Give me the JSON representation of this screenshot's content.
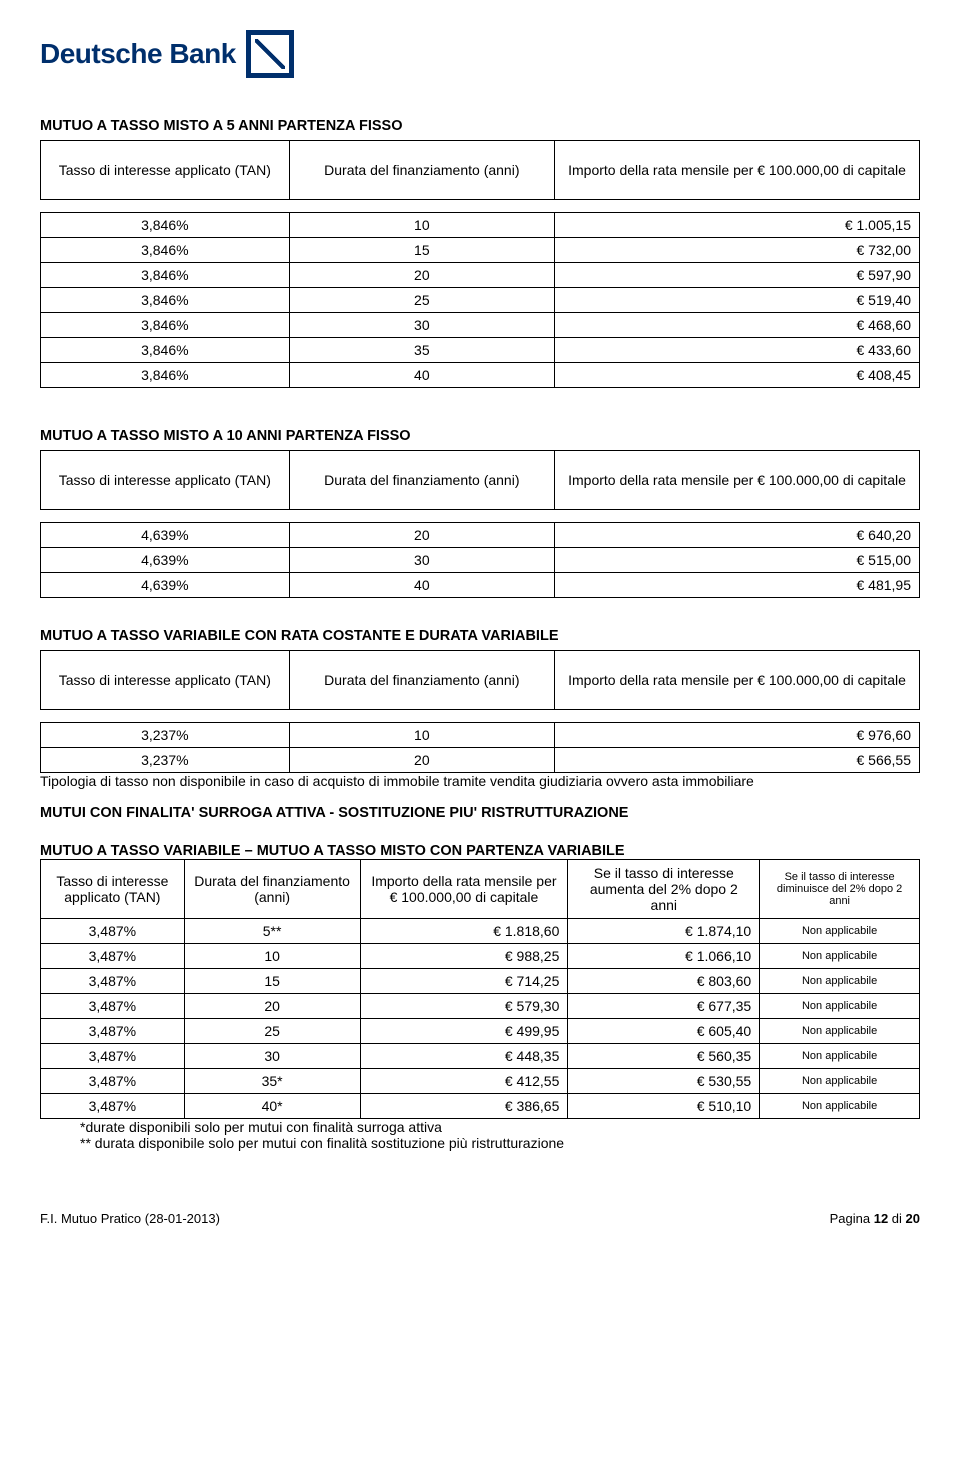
{
  "logo_text": "Deutsche Bank",
  "section1": {
    "title": "MUTUO A TASSO MISTO A 5 ANNI PARTENZA FISSO",
    "h1": "Tasso di interesse applicato (TAN)",
    "h2": "Durata del finanziamento (anni)",
    "h3": "Importo della rata mensile per € 100.000,00 di capitale",
    "rows": [
      {
        "a": "3,846%",
        "b": "10",
        "c": "€ 1.005,15"
      },
      {
        "a": "3,846%",
        "b": "15",
        "c": "€ 732,00"
      },
      {
        "a": "3,846%",
        "b": "20",
        "c": "€ 597,90"
      },
      {
        "a": "3,846%",
        "b": "25",
        "c": "€ 519,40"
      },
      {
        "a": "3,846%",
        "b": "30",
        "c": "€ 468,60"
      },
      {
        "a": "3,846%",
        "b": "35",
        "c": "€ 433,60"
      },
      {
        "a": "3,846%",
        "b": "40",
        "c": "€ 408,45"
      }
    ]
  },
  "section2": {
    "title": "MUTUO A TASSO MISTO A 10 ANNI PARTENZA FISSO",
    "h1": "Tasso di interesse applicato (TAN)",
    "h2": "Durata del finanziamento (anni)",
    "h3": "Importo della rata mensile per € 100.000,00 di capitale",
    "rows": [
      {
        "a": "4,639%",
        "b": "20",
        "c": "€ 640,20"
      },
      {
        "a": "4,639%",
        "b": "30",
        "c": "€ 515,00"
      },
      {
        "a": "4,639%",
        "b": "40",
        "c": "€ 481,95"
      }
    ]
  },
  "section3": {
    "title": "MUTUO A TASSO VARIABILE CON RATA COSTANTE E DURATA VARIABILE",
    "h1": "Tasso di interesse applicato (TAN)",
    "h2": "Durata del finanziamento (anni)",
    "h3": "Importo della rata mensile per € 100.000,00 di capitale",
    "rows": [
      {
        "a": "3,237%",
        "b": "10",
        "c": "€ 976,60"
      },
      {
        "a": "3,237%",
        "b": "20",
        "c": "€ 566,55"
      }
    ],
    "note": "Tipologia di tasso non disponibile in caso di acquisto di immobile tramite vendita giudiziaria ovvero asta immobiliare"
  },
  "bold_heading": "MUTUI CON FINALITA' SURROGA ATTIVA - SOSTITUZIONE PIU' RISTRUTTURAZIONE",
  "section4": {
    "title": "MUTUO A TASSO VARIABILE – MUTUO A TASSO MISTO CON PARTENZA VARIABILE",
    "h1": "Tasso di interesse applicato (TAN)",
    "h2": "Durata del finanziamento (anni)",
    "h3": "Importo della rata mensile per € 100.000,00 di capitale",
    "h4": "Se il tasso di interesse aumenta del 2% dopo 2 anni",
    "h5": "Se il tasso di interesse diminuisce del 2% dopo 2 anni",
    "rows": [
      {
        "a": "3,487%",
        "b": "5**",
        "c": "€ 1.818,60",
        "d": "€ 1.874,10",
        "e": "Non applicabile"
      },
      {
        "a": "3,487%",
        "b": "10",
        "c": "€ 988,25",
        "d": "€ 1.066,10",
        "e": "Non applicabile"
      },
      {
        "a": "3,487%",
        "b": "15",
        "c": "€ 714,25",
        "d": "€ 803,60",
        "e": "Non applicabile"
      },
      {
        "a": "3,487%",
        "b": "20",
        "c": "€ 579,30",
        "d": "€ 677,35",
        "e": "Non applicabile"
      },
      {
        "a": "3,487%",
        "b": "25",
        "c": "€ 499,95",
        "d": "€ 605,40",
        "e": "Non applicabile"
      },
      {
        "a": "3,487%",
        "b": "30",
        "c": "€ 448,35",
        "d": "€ 560,35",
        "e": "Non applicabile"
      },
      {
        "a": "3,487%",
        "b": "35*",
        "c": "€ 412,55",
        "d": "€ 530,55",
        "e": "Non applicabile"
      },
      {
        "a": "3,487%",
        "b": "40*",
        "c": "€ 386,65",
        "d": "€ 510,10",
        "e": "Non applicabile"
      }
    ],
    "note1": "*durate disponibili solo per mutui con finalità surroga attiva",
    "note2": "** durata disponibile solo per mutui con finalità sostituzione più ristrutturazione"
  },
  "footer_left": "F.I. Mutuo Pratico (28-01-2013)",
  "footer_right_prefix": "Pagina ",
  "footer_page": "12",
  "footer_of": " di ",
  "footer_total": "20"
}
